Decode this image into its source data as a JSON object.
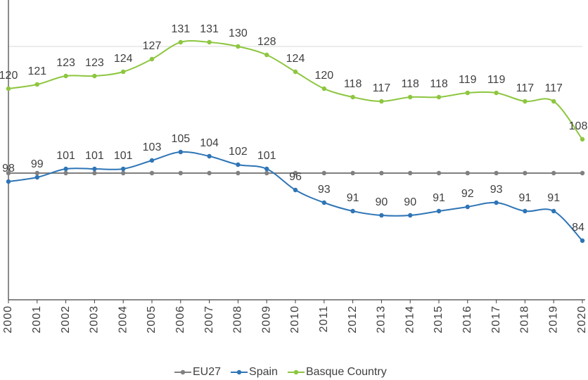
{
  "chart_data": {
    "type": "line",
    "categories": [
      "2000",
      "2001",
      "2002",
      "2003",
      "2004",
      "2005",
      "2006",
      "2007",
      "2008",
      "2009",
      "2010",
      "2011",
      "2012",
      "2013",
      "2014",
      "2015",
      "2016",
      "2017",
      "2018",
      "2019",
      "2020"
    ],
    "series": [
      {
        "name": "EU27",
        "color": "#808080",
        "values": [
          100,
          100,
          100,
          100,
          100,
          100,
          100,
          100,
          100,
          100,
          100,
          100,
          100,
          100,
          100,
          100,
          100,
          100,
          100,
          100,
          100
        ]
      },
      {
        "name": "Spain",
        "color": "#2e75b6",
        "values": [
          98,
          99,
          101,
          101,
          101,
          103,
          105,
          104,
          102,
          101,
          96,
          93,
          91,
          90,
          90,
          91,
          92,
          93,
          91,
          91,
          84
        ],
        "labels": true
      },
      {
        "name": "Basque Country",
        "color": "#8dc63f",
        "values": [
          120,
          121,
          123,
          123,
          124,
          127,
          131,
          131,
          130,
          128,
          124,
          120,
          118,
          117,
          118,
          118,
          119,
          119,
          117,
          117,
          108
        ],
        "labels": true
      }
    ],
    "ylim": [
      70,
      140
    ],
    "ygrid": [
      130
    ],
    "legend": "bottom"
  }
}
